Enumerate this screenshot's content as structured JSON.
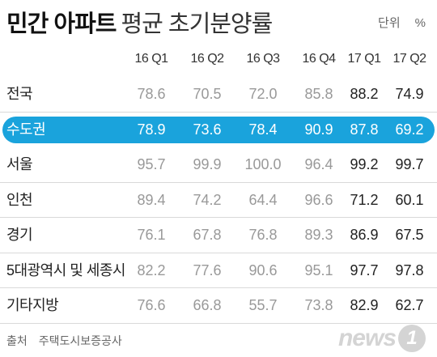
{
  "title": {
    "bold": "민간 아파트",
    "rest": "평균 초기분양률"
  },
  "unit": {
    "label": "단위",
    "symbol": "%"
  },
  "columns": [
    "16 Q1",
    "16 Q2",
    "16 Q3",
    "16 Q4",
    "17 Q1",
    "17 Q2"
  ],
  "rows": [
    {
      "label": "전국",
      "values": [
        "78.6",
        "70.5",
        "72.0",
        "85.8",
        "88.2",
        "74.9"
      ]
    },
    {
      "label": "수도권",
      "values": [
        "78.9",
        "73.6",
        "78.4",
        "90.9",
        "87.8",
        "69.2"
      ],
      "highlight": true
    },
    {
      "label": "서울",
      "values": [
        "95.7",
        "99.9",
        "100.0",
        "96.4",
        "99.2",
        "99.7"
      ]
    },
    {
      "label": "인천",
      "values": [
        "89.4",
        "74.2",
        "64.4",
        "96.6",
        "71.2",
        "60.1"
      ]
    },
    {
      "label": "경기",
      "values": [
        "76.1",
        "67.8",
        "76.8",
        "89.3",
        "86.9",
        "67.5"
      ]
    },
    {
      "label": "5대광역시 및 세종시",
      "values": [
        "82.2",
        "77.6",
        "90.6",
        "95.1",
        "97.7",
        "97.8"
      ]
    },
    {
      "label": "기타지방",
      "values": [
        "76.6",
        "66.8",
        "55.7",
        "73.8",
        "82.9",
        "62.7"
      ]
    }
  ],
  "footer": {
    "label": "출처",
    "source": "주택도시보증공사"
  },
  "logo": {
    "text": "news",
    "mark": "1"
  },
  "colors": {
    "highlight": "#1aa3dc",
    "muted": "#999999",
    "strong": "#222222"
  }
}
